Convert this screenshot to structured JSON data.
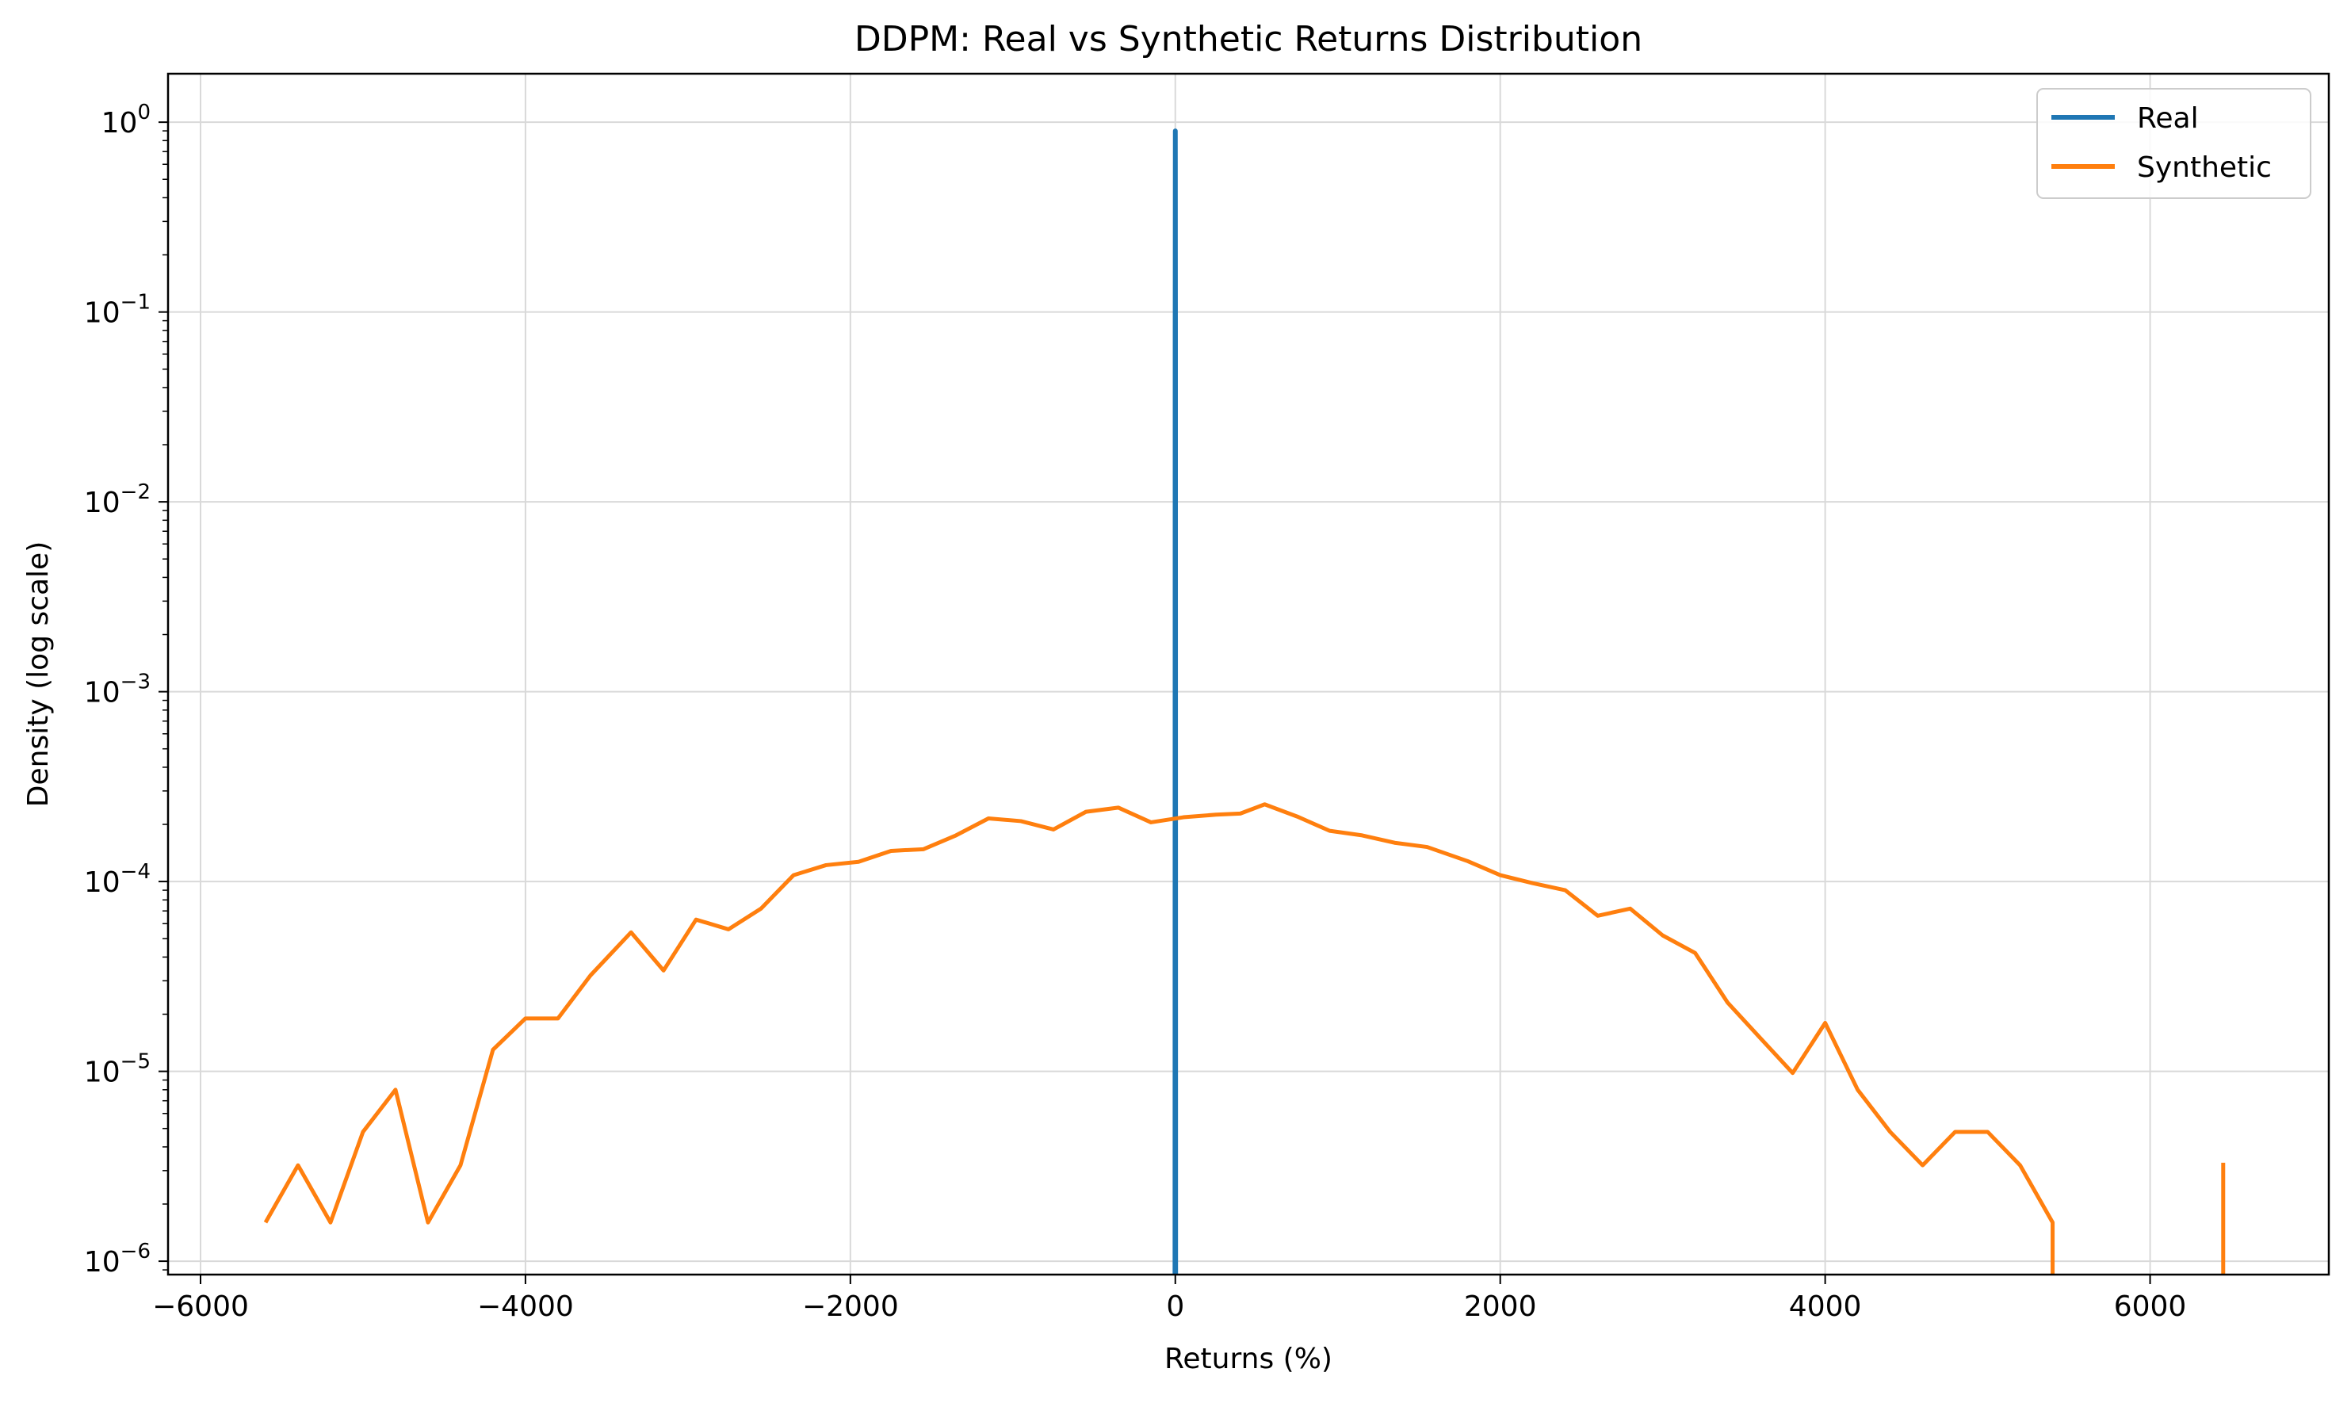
{
  "chart_data": {
    "type": "line",
    "title": "DDPM: Real vs Synthetic Returns Distribution",
    "xlabel": "Returns (%)",
    "ylabel": "Density (log scale)",
    "xscale": "linear",
    "yscale": "log",
    "xlim": [
      -6200,
      7100
    ],
    "ylim": [
      8.5e-07,
      1.8
    ],
    "grid": true,
    "legend_position": "top-right",
    "x_ticks": [
      {
        "value": -6000,
        "label": "−6000"
      },
      {
        "value": -4000,
        "label": "−4000"
      },
      {
        "value": -2000,
        "label": "−2000"
      },
      {
        "value": 0,
        "label": "0"
      },
      {
        "value": 2000,
        "label": "2000"
      },
      {
        "value": 4000,
        "label": "4000"
      },
      {
        "value": 6000,
        "label": "6000"
      }
    ],
    "y_ticks": [
      {
        "value": 1,
        "base": "10",
        "exp": "0"
      },
      {
        "value": 0.1,
        "base": "10",
        "exp": "−1"
      },
      {
        "value": 0.01,
        "base": "10",
        "exp": "−2"
      },
      {
        "value": 0.001,
        "base": "10",
        "exp": "−3"
      },
      {
        "value": 0.0001,
        "base": "10",
        "exp": "−4"
      },
      {
        "value": 1e-05,
        "base": "10",
        "exp": "−5"
      },
      {
        "value": 1e-06,
        "base": "10",
        "exp": "−6"
      }
    ],
    "series": [
      {
        "name": "Real",
        "color": "#1f77b4",
        "points": [
          [
            -2,
            8.5e-07
          ],
          [
            -1,
            0.08
          ],
          [
            -0.5,
            0.2
          ],
          [
            0,
            0.9
          ],
          [
            0.3,
            0.6
          ],
          [
            0.6,
            0.2
          ],
          [
            1,
            0.08
          ],
          [
            2,
            8.5e-07
          ]
        ]
      },
      {
        "name": "Synthetic",
        "color": "#ff7f0e",
        "points": [
          [
            -5600,
            1.6e-06
          ],
          [
            -5400,
            3.2e-06
          ],
          [
            -5200,
            1.6e-06
          ],
          [
            -5000,
            4.8e-06
          ],
          [
            -4800,
            8e-06
          ],
          [
            -4600,
            1.6e-06
          ],
          [
            -4400,
            3.2e-06
          ],
          [
            -4200,
            1.3e-05
          ],
          [
            -4000,
            1.9e-05
          ],
          [
            -3800,
            1.9e-05
          ],
          [
            -3600,
            3.2e-05
          ],
          [
            -3350,
            5.4e-05
          ],
          [
            -3150,
            3.4e-05
          ],
          [
            -2950,
            6.3e-05
          ],
          [
            -2750,
            5.6e-05
          ],
          [
            -2550,
            7.2e-05
          ],
          [
            -2350,
            0.000108
          ],
          [
            -2150,
            0.000122
          ],
          [
            -1950,
            0.000127
          ],
          [
            -1750,
            0.000145
          ],
          [
            -1550,
            0.000148
          ],
          [
            -1350,
            0.000175
          ],
          [
            -1150,
            0.000215
          ],
          [
            -950,
            0.000208
          ],
          [
            -750,
            0.000188
          ],
          [
            -550,
            0.000233
          ],
          [
            -350,
            0.000245
          ],
          [
            -150,
            0.000205
          ],
          [
            50,
            0.000218
          ],
          [
            250,
            0.000225
          ],
          [
            400,
            0.000228
          ],
          [
            550,
            0.000255
          ],
          [
            750,
            0.00022
          ],
          [
            950,
            0.000185
          ],
          [
            1150,
            0.000175
          ],
          [
            1350,
            0.00016
          ],
          [
            1550,
            0.000152
          ],
          [
            1800,
            0.000128
          ],
          [
            2000,
            0.000108
          ],
          [
            2200,
            9.8e-05
          ],
          [
            2400,
            9e-05
          ],
          [
            2600,
            6.6e-05
          ],
          [
            2800,
            7.2e-05
          ],
          [
            3000,
            5.2e-05
          ],
          [
            3200,
            4.2e-05
          ],
          [
            3400,
            2.3e-05
          ],
          [
            3600,
            1.5e-05
          ],
          [
            3800,
            9.8e-06
          ],
          [
            4000,
            1.8e-05
          ],
          [
            4200,
            8e-06
          ],
          [
            4400,
            4.8e-06
          ],
          [
            4600,
            3.2e-06
          ],
          [
            4800,
            4.8e-06
          ],
          [
            5000,
            4.8e-06
          ],
          [
            5200,
            3.2e-06
          ],
          [
            5400,
            1.6e-06
          ],
          [
            5400,
            8.5e-07
          ],
          null,
          [
            6450,
            8.5e-07
          ],
          [
            6450,
            3.3e-06
          ]
        ]
      }
    ]
  }
}
